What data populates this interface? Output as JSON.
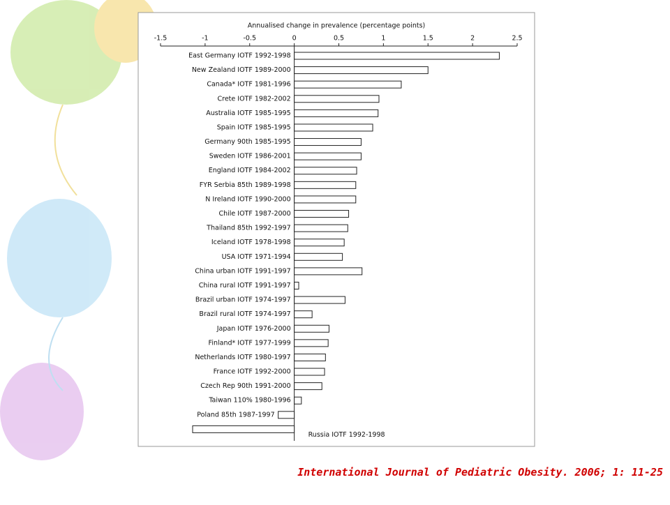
{
  "caption": "International Journal of Pediatric Obesity. 2006; 1: 11-25",
  "chart_data": {
    "type": "barh",
    "title": "Annualised change in prevalence (percentage points)",
    "categories": [
      "East Germany IOTF 1992-1998",
      "New Zealand IOTF 1989-2000",
      "Canada* IOTF 1981-1996",
      "Crete IOTF 1982-2002",
      "Australia IOTF 1985-1995",
      "Spain IOTF 1985-1995",
      "Germany 90th 1985-1995",
      "Sweden IOTF 1986-2001",
      "England IOTF 1984-2002",
      "FYR Serbia 85th 1989-1998",
      "N Ireland IOTF 1990-2000",
      "Chile IOTF 1987-2000",
      "Thailand 85th 1992-1997",
      "Iceland IOTF 1978-1998",
      "USA IOTF 1971-1994",
      "China urban IOTF 1991-1997",
      "China rural IOTF 1991-1997",
      "Brazil urban IOTF 1974-1997",
      "Brazil rural IOTF 1974-1997",
      "Japan IOTF 1976-2000",
      "Finland* IOTF 1977-1999",
      "Netherlands IOTF 1980-1997",
      "France IOTF 1992-2000",
      "Czech Rep 90th 1991-2000",
      "Taiwan 110% 1980-1996",
      "Poland 85th 1987-1997",
      "Russia IOTF 1992-1998"
    ],
    "values": [
      2.3,
      1.5,
      1.2,
      0.95,
      0.94,
      0.88,
      0.75,
      0.75,
      0.7,
      0.69,
      0.69,
      0.61,
      0.6,
      0.56,
      0.54,
      0.76,
      0.05,
      0.57,
      0.2,
      0.39,
      0.38,
      0.35,
      0.34,
      0.31,
      0.08,
      -0.18,
      -1.14
    ],
    "color": "#ffffff",
    "xlim": [
      -1.5,
      2.5
    ],
    "xticks": [
      -1.5,
      -1,
      -0.5,
      0,
      0.5,
      1,
      1.5,
      2,
      2.5
    ]
  }
}
